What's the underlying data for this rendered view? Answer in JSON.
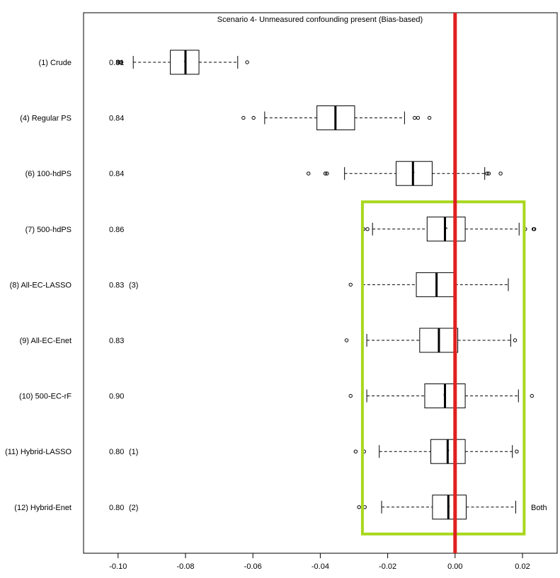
{
  "chart_data": {
    "type": "boxplot",
    "title": "Scenario 4- Unmeasured confounding present (Bias-based)",
    "xlabel": "",
    "ylabel": "",
    "xlim": [
      -0.105,
      0.03
    ],
    "x_ticks": [
      -0.1,
      -0.08,
      -0.06,
      -0.04,
      -0.02,
      0.0,
      0.02
    ],
    "x_tick_labels": [
      "-0.10",
      "-0.08",
      "-0.06",
      "-0.04",
      "-0.02",
      "0.00",
      "0.02"
    ],
    "reference_line": {
      "x": 0.0,
      "color": "#e02020"
    },
    "highlight_box": {
      "x_range": [
        -0.0275,
        0.0205
      ],
      "from_row": 4,
      "to_row": 9,
      "color": "#a8d81e"
    },
    "rows": [
      {
        "label": "(1) Crude",
        "annotation": "0.81",
        "note": "",
        "side_note": "",
        "whisker_low": -0.0955,
        "q1": -0.0845,
        "median": -0.08,
        "q3": -0.076,
        "whisker_high": -0.0645,
        "mean": -0.0802,
        "outliers": [
          -0.1,
          -0.0995,
          -0.099,
          -0.0617
        ]
      },
      {
        "label": "(4) Regular PS",
        "annotation": "0.84",
        "note": "",
        "side_note": "",
        "whisker_low": -0.0565,
        "q1": -0.041,
        "median": -0.0355,
        "q3": -0.0298,
        "whisker_high": -0.015,
        "mean": -0.0355,
        "outliers": [
          -0.0628,
          -0.0598,
          -0.012,
          -0.011,
          -0.0076
        ]
      },
      {
        "label": "(6) 100-hdPS",
        "annotation": "0.84",
        "note": "",
        "side_note": "",
        "whisker_low": -0.0328,
        "q1": -0.0175,
        "median": -0.0125,
        "q3": -0.0068,
        "whisker_high": 0.0088,
        "mean": -0.0123,
        "outliers": [
          -0.0435,
          -0.0385,
          -0.038,
          0.0095,
          0.01,
          0.0135
        ]
      },
      {
        "label": "(7) 500-hdPS",
        "annotation": "0.86",
        "note": "",
        "side_note": "",
        "whisker_low": -0.0245,
        "q1": -0.0083,
        "median": -0.003,
        "q3": 0.003,
        "whisker_high": 0.019,
        "mean": -0.0025,
        "outliers": [
          -0.0272,
          -0.026,
          0.0208,
          0.0233,
          0.0235
        ]
      },
      {
        "label": "(8) All-EC-LASSO",
        "annotation": "0.83",
        "note": "(3)",
        "side_note": "",
        "whisker_low": -0.0275,
        "q1": -0.0115,
        "median": -0.0055,
        "q3": 0.0,
        "whisker_high": 0.0158,
        "mean": -0.0055,
        "outliers": [
          -0.031
        ]
      },
      {
        "label": "(9) All-EC-Enet",
        "annotation": "0.83",
        "note": "",
        "side_note": "",
        "whisker_low": -0.0262,
        "q1": -0.0105,
        "median": -0.0048,
        "q3": 0.0008,
        "whisker_high": 0.0165,
        "mean": -0.0048,
        "outliers": [
          -0.0322,
          0.0178
        ]
      },
      {
        "label": "(10) 500-EC-rF",
        "annotation": "0.90",
        "note": "",
        "side_note": "",
        "whisker_low": -0.0262,
        "q1": -0.009,
        "median": -0.003,
        "q3": 0.003,
        "whisker_high": 0.0188,
        "mean": -0.0032,
        "outliers": [
          -0.031,
          0.0228
        ]
      },
      {
        "label": "(11) Hybrid-LASSO",
        "annotation": "0.80",
        "note": "(1)",
        "side_note": "",
        "whisker_low": -0.0225,
        "q1": -0.0072,
        "median": -0.0022,
        "q3": 0.003,
        "whisker_high": 0.017,
        "mean": -0.002,
        "outliers": [
          -0.0295,
          -0.027,
          0.0183
        ]
      },
      {
        "label": "(12) Hybrid-Enet",
        "annotation": "0.80",
        "note": "(2)",
        "side_note": "Both",
        "whisker_low": -0.0218,
        "q1": -0.0067,
        "median": -0.002,
        "q3": 0.0033,
        "whisker_high": 0.018,
        "mean": -0.0018,
        "outliers": [
          -0.0285,
          -0.0268
        ]
      }
    ]
  }
}
